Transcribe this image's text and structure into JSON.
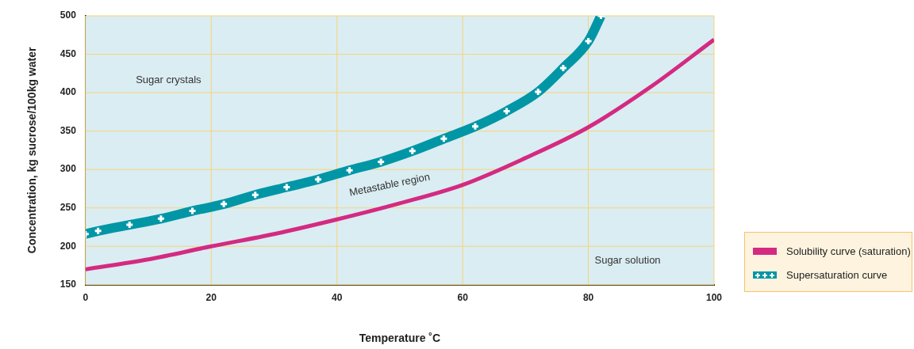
{
  "chart_data": {
    "type": "line",
    "xlabel": "Temperature ˚C",
    "ylabel": "Concentration, kg sucrose/100kg water",
    "xlim": [
      0,
      100
    ],
    "xticks": [
      0,
      20,
      40,
      60,
      80,
      100
    ],
    "ylim": [
      150,
      500
    ],
    "yticks": [
      150,
      200,
      250,
      300,
      350,
      400,
      450,
      500
    ],
    "grid": true,
    "legend": "bottom right",
    "series": [
      {
        "name": "Solubility curve (saturation)",
        "type": "area",
        "color": "#d42a82",
        "marker": "none",
        "x": [
          0,
          10,
          20,
          30,
          40,
          50,
          60,
          70,
          80,
          90,
          100
        ],
        "values": [
          170,
          183,
          200,
          216,
          235,
          256,
          280,
          315,
          355,
          408,
          469
        ]
      },
      {
        "name": "Supersaturation curve",
        "color": "#0096a6",
        "marker": "cross",
        "x": [
          0,
          2,
          7,
          12,
          17,
          22,
          27,
          32,
          37,
          42,
          47,
          52,
          57,
          62,
          67,
          72,
          76,
          80,
          82
        ],
        "values": [
          216,
          220,
          228,
          236,
          246,
          255,
          267,
          277,
          287,
          299,
          310,
          324,
          340,
          356,
          376,
          401,
          432,
          467,
          500
        ]
      }
    ],
    "annotations": [
      "Sugar crystals",
      "Metastable region",
      "Sugar solution"
    ]
  }
}
